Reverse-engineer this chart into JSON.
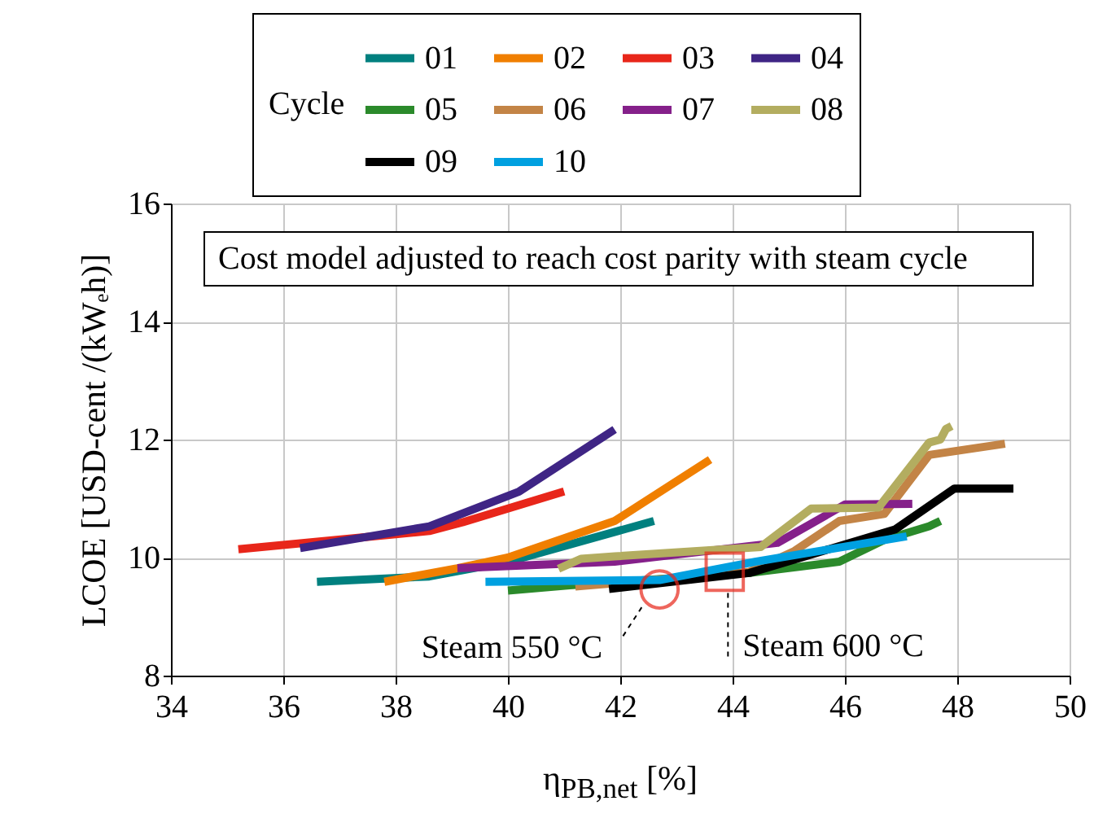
{
  "chart_data": {
    "type": "line",
    "xlabel": "η$_{PB,net}$ [%]",
    "ylabel": "LCOE [USD-cent /(kWₑh)]",
    "legend_title": "Cycle",
    "xlim": [
      34,
      50
    ],
    "xticks": [
      34,
      36,
      38,
      40,
      42,
      44,
      46,
      48,
      50
    ],
    "ylim": [
      8,
      16
    ],
    "yticks": [
      8,
      10,
      12,
      14,
      16
    ],
    "grid": true,
    "legend": "top",
    "line_style": "solid",
    "marker": "none",
    "annotations": [
      "Cost model adjusted to reach cost parity with steam cycle",
      {
        "text": "Steam 550 °C",
        "x": 42.7,
        "y": 9.46
      },
      {
        "text": "Steam 600 °C",
        "x": 43.86,
        "y": 9.76
      }
    ],
    "series": [
      {
        "name": "01",
        "color": "#00807f",
        "x": [
          36.6,
          38.6,
          40.0,
          42.6
        ],
        "values": [
          9.59,
          9.68,
          9.93,
          10.62
        ]
      },
      {
        "name": "02",
        "color": "#f07f00",
        "x": [
          37.8,
          39.1,
          40.0,
          41.9,
          43.6
        ],
        "values": [
          9.59,
          9.82,
          10.0,
          10.62,
          11.66
        ]
      },
      {
        "name": "03",
        "color": "#e8261a",
        "x": [
          35.2,
          38.6,
          39.2,
          41.0
        ],
        "values": [
          10.14,
          10.45,
          10.6,
          11.12
        ]
      },
      {
        "name": "04",
        "color": "#3f2585",
        "x": [
          36.3,
          38.6,
          40.2,
          41.9
        ],
        "values": [
          10.16,
          10.53,
          11.12,
          12.17
        ]
      },
      {
        "name": "05",
        "color": "#2b8a2b",
        "x": [
          40.0,
          41.1,
          44.3,
          45.9,
          46.7,
          47.5,
          47.7
        ],
        "values": [
          9.44,
          9.53,
          9.74,
          9.93,
          10.3,
          10.53,
          10.62
        ]
      },
      {
        "name": "06",
        "color": "#c38446",
        "x": [
          41.2,
          44.3,
          45.1,
          45.9,
          46.7,
          47.5,
          48.85
        ],
        "values": [
          9.51,
          9.76,
          10.11,
          10.62,
          10.74,
          11.74,
          11.93
        ]
      },
      {
        "name": "07",
        "color": "#85208a",
        "x": [
          39.1,
          41.9,
          44.8,
          46.0,
          47.2
        ],
        "values": [
          9.82,
          9.93,
          10.25,
          10.9,
          10.91
        ]
      },
      {
        "name": "08",
        "color": "#b3ad60",
        "x": [
          40.9,
          41.3,
          41.9,
          44.5,
          45.4,
          46.6,
          47.5,
          47.7,
          47.8,
          47.9
        ],
        "values": [
          9.81,
          9.98,
          10.02,
          10.18,
          10.83,
          10.85,
          11.95,
          12.0,
          12.18,
          12.23
        ]
      },
      {
        "name": "09",
        "color": "#000000",
        "x": [
          41.8,
          44.3,
          46.9,
          47.95,
          49.0
        ],
        "values": [
          9.47,
          9.74,
          10.48,
          11.17,
          11.17
        ]
      },
      {
        "name": "10",
        "color": "#00a0e0",
        "x": [
          39.6,
          42.7,
          44.4,
          47.1
        ],
        "values": [
          9.59,
          9.62,
          9.93,
          10.36
        ]
      }
    ]
  }
}
